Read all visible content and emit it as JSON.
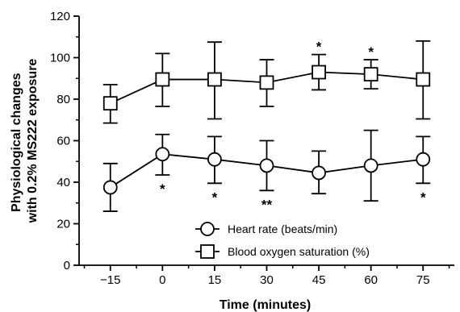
{
  "chart_data": {
    "type": "line",
    "xlabel": "Time (minutes)",
    "ylabel_lines": [
      "Physiological changes",
      "with 0.2% MS222 exposure"
    ],
    "x": [
      -15,
      0,
      15,
      30,
      45,
      60,
      75
    ],
    "x_tick_labels": [
      "−15",
      "0",
      "15",
      "30",
      "45",
      "60",
      "75"
    ],
    "xlim": [
      -24,
      84
    ],
    "ylim": [
      0,
      120
    ],
    "y_ticks": [
      0,
      20,
      40,
      60,
      80,
      100,
      120
    ],
    "y_tick_labels": [
      "0",
      "20",
      "40",
      "60",
      "80",
      "100",
      "120"
    ],
    "grid": false,
    "legend_position": "bottom-center",
    "series": [
      {
        "name": "Heart rate (beats/min)",
        "marker": "circle",
        "values": [
          37.5,
          53.5,
          51,
          48,
          44.5,
          48,
          51
        ],
        "error_upper": [
          49,
          63,
          62,
          60,
          55,
          65,
          62
        ],
        "error_lower": [
          26,
          43.5,
          39.5,
          36,
          34.5,
          31,
          39.5
        ],
        "annotations": [
          "",
          "*",
          "*",
          "**",
          "",
          "",
          "*"
        ],
        "annotation_position": "below"
      },
      {
        "name": "Blood oxygen saturation (%)",
        "marker": "square",
        "values": [
          78,
          89.5,
          89.5,
          88,
          93,
          92,
          89.5
        ],
        "error_upper": [
          87,
          102,
          107.5,
          99,
          101.5,
          99,
          108
        ],
        "error_lower": [
          68.5,
          76.5,
          70.5,
          76.5,
          84.5,
          85,
          70.5
        ],
        "annotations": [
          "",
          "",
          "",
          "",
          "*",
          "*",
          ""
        ],
        "annotation_position": "above"
      }
    ]
  }
}
